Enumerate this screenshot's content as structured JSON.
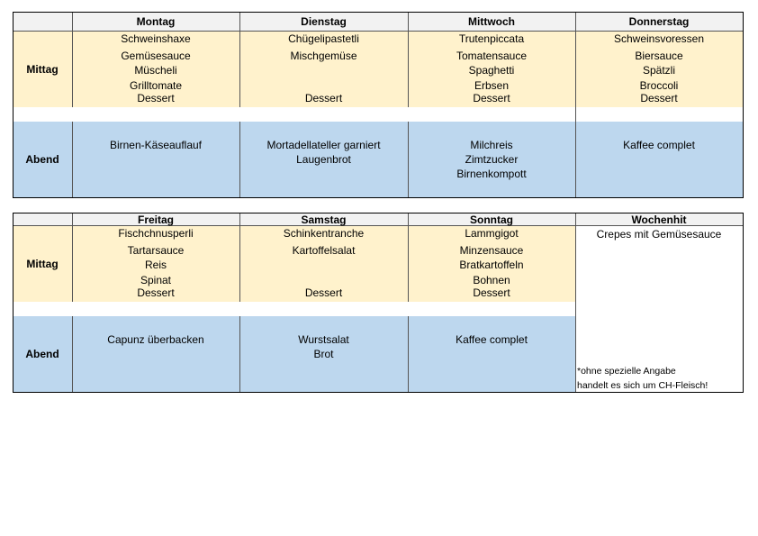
{
  "tables": [
    {
      "header": [
        "Montag",
        "Dienstag",
        "Mittwoch",
        "Donnerstag"
      ],
      "rows": [
        {
          "label": "Mittag",
          "cells": [
            {
              "lines": [
                "Schweinshaxe",
                "Gemüsesauce",
                "Müscheli",
                "Grilltomate"
              ],
              "dessert": "Dessert"
            },
            {
              "lines": [
                "Chügelipastetli",
                "Mischgemüse"
              ],
              "dessert": "Dessert"
            },
            {
              "lines": [
                "Trutenpiccata",
                "Tomatensauce",
                "Spaghetti",
                "Erbsen"
              ],
              "dessert": "Dessert"
            },
            {
              "lines": [
                "Schweinsvoressen",
                "Biersauce",
                "Spätzli",
                "Broccoli"
              ],
              "dessert": "Dessert"
            }
          ]
        },
        {
          "label": "Abend",
          "cells": [
            {
              "lines": [
                "Birnen-Käseauflauf"
              ]
            },
            {
              "lines": [
                "Mortadellateller garniert",
                "Laugenbrot"
              ]
            },
            {
              "lines": [
                "Milchreis",
                "Zimtzucker",
                "Birnenkompott"
              ]
            },
            {
              "lines": [
                "Kaffee complet"
              ]
            }
          ]
        }
      ]
    },
    {
      "header": [
        "Freitag",
        "Samstag",
        "Sonntag",
        "Wochenhit"
      ],
      "rows": [
        {
          "label": "Mittag",
          "cells": [
            {
              "lines": [
                "Fischchnusperli",
                "Tartarsauce",
                "Reis",
                "Spinat"
              ],
              "dessert": "Dessert"
            },
            {
              "lines": [
                "Schinkentranche",
                "Kartoffelsalat"
              ],
              "dessert": "Dessert"
            },
            {
              "lines": [
                "Lammgigot",
                "Minzensauce",
                "Bratkartoffeln",
                "Bohnen"
              ],
              "dessert": "Dessert"
            }
          ]
        },
        {
          "label": "Abend",
          "cells": [
            {
              "lines": [
                "Capunz überbacken"
              ]
            },
            {
              "lines": [
                "Wurstsalat",
                "Brot"
              ]
            },
            {
              "lines": [
                "Kaffee complet"
              ]
            }
          ]
        }
      ],
      "special": {
        "dish": "Crepes mit Gemüsesauce",
        "note": [
          "*ohne spezielle Angabe",
          "handelt es sich um CH-Fleisch!"
        ]
      }
    }
  ]
}
